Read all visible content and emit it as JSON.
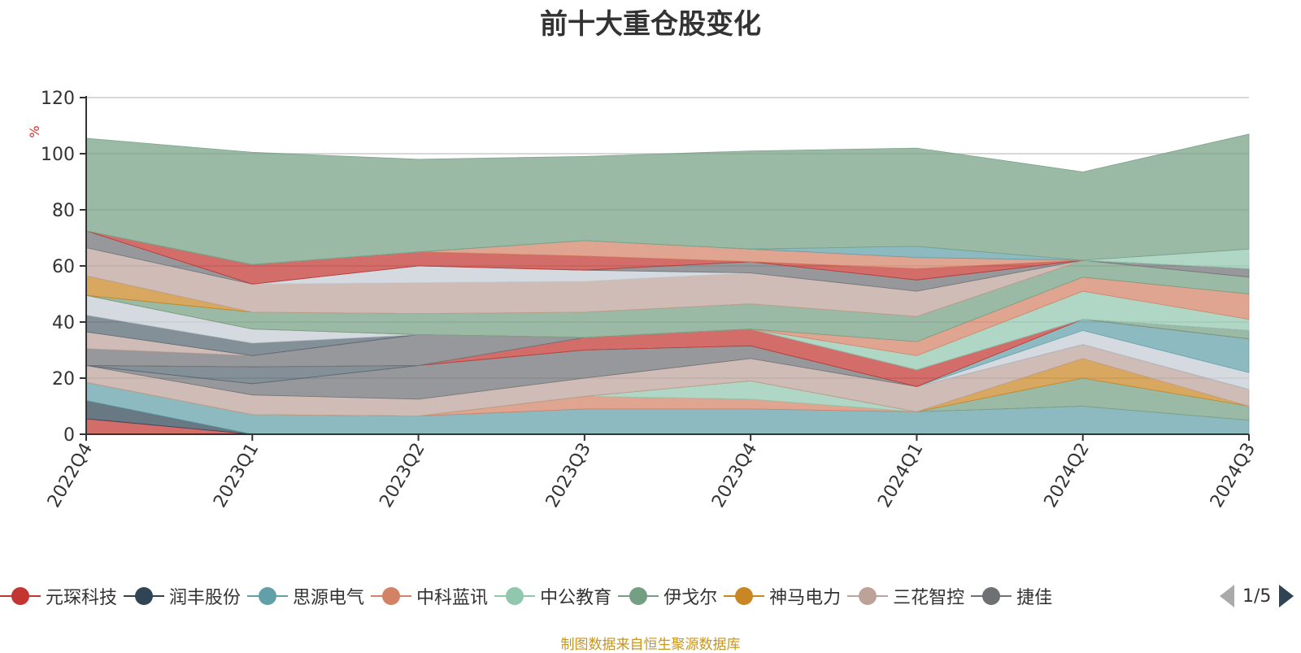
{
  "chart_data": {
    "type": "area",
    "title": "前十大重仓股变化",
    "ylabel": "%",
    "ylim": [
      0,
      120
    ],
    "yticks": [
      0,
      20,
      40,
      60,
      80,
      100,
      120
    ],
    "categories": [
      "2022Q4",
      "2023Q1",
      "2023Q2",
      "2023Q3",
      "2023Q4",
      "2024Q1",
      "2024Q2",
      "2024Q3"
    ],
    "legend_position": "bottom",
    "visible_legend": [
      "元琛科技",
      "润丰股份",
      "思源电气",
      "中科蓝讯",
      "中公教育",
      "伊戈尔",
      "神马电力",
      "三花智控",
      "捷佳"
    ],
    "series": [
      {
        "name": "元琛科技",
        "color": "#c23531",
        "values": [
          5.5,
          0,
          0,
          0,
          0,
          0,
          0,
          0
        ]
      },
      {
        "name": "润丰股份",
        "color": "#2f4554",
        "values": [
          6.5,
          0,
          0,
          0,
          0,
          0,
          0,
          0
        ]
      },
      {
        "name": "思源电气",
        "color": "#61a0a8",
        "values": [
          6.5,
          7,
          6.5,
          9,
          9,
          8,
          10,
          5
        ]
      },
      {
        "name": "中科蓝讯",
        "color": "#d48265",
        "values": [
          0,
          0,
          0,
          4.5,
          3.5,
          0,
          0,
          0
        ]
      },
      {
        "name": "中公教育",
        "color": "#91c7ae",
        "values": [
          0,
          0,
          0,
          0,
          6.5,
          0,
          0,
          0
        ]
      },
      {
        "name": "伊戈尔",
        "color": "#749f83",
        "values": [
          0,
          0,
          0,
          0,
          0,
          0,
          10,
          5
        ]
      },
      {
        "name": "神马电力",
        "color": "#ca8622",
        "values": [
          0,
          0,
          0,
          0,
          0,
          0,
          7,
          0
        ]
      },
      {
        "name": "三花智控",
        "color": "#bda29a",
        "values": [
          6,
          7,
          6,
          6.5,
          8,
          9,
          5,
          6
        ]
      },
      {
        "name": "捷佳",
        "color": "#6e7074",
        "values": [
          0,
          4,
          12,
          10,
          4.5,
          0,
          0,
          0
        ]
      },
      {
        "name": "",
        "color": "#546570",
        "values": [
          0,
          6,
          0,
          0,
          0,
          0,
          0,
          0
        ]
      },
      {
        "name": "",
        "color": "#c4ccd3",
        "values": [
          0,
          0,
          0,
          0,
          0,
          0,
          5,
          6
        ]
      },
      {
        "name": "",
        "color": "#61a0a8",
        "values": [
          0,
          0,
          0,
          0,
          0,
          0,
          4,
          12
        ]
      },
      {
        "name": "",
        "color": "#c23531",
        "values": [
          0,
          0,
          0,
          4.5,
          6,
          6,
          0,
          0
        ]
      },
      {
        "name": "",
        "color": "#749f83",
        "values": [
          0,
          0,
          0,
          0,
          0,
          0,
          0,
          3
        ]
      },
      {
        "name": "",
        "color": "#6e7074",
        "values": [
          6,
          4,
          11,
          0,
          0,
          0,
          0,
          0
        ]
      },
      {
        "name": "",
        "color": "#bda29a",
        "values": [
          6,
          0,
          0,
          0,
          0,
          0,
          0,
          0
        ]
      },
      {
        "name": "",
        "color": "#546570",
        "values": [
          6,
          4.5,
          0,
          0,
          0,
          0,
          0,
          0
        ]
      },
      {
        "name": "",
        "color": "#c4ccd3",
        "values": [
          7,
          5,
          0,
          0,
          0,
          0,
          0,
          0
        ]
      },
      {
        "name": "",
        "color": "#91c7ae",
        "values": [
          0,
          0,
          0,
          0,
          0,
          5,
          10,
          4
        ]
      },
      {
        "name": "",
        "color": "#d48265",
        "values": [
          0,
          0,
          0,
          0,
          0,
          5,
          5,
          9
        ]
      },
      {
        "name": "",
        "color": "#749f83",
        "values": [
          0,
          6,
          7.5,
          9,
          9,
          9,
          6,
          6
        ]
      },
      {
        "name": "",
        "color": "#ca8622",
        "values": [
          7,
          0,
          0,
          0,
          0,
          0,
          0,
          0
        ]
      },
      {
        "name": "",
        "color": "#bda29a",
        "values": [
          10,
          10,
          11,
          11,
          11,
          9,
          0,
          0
        ]
      },
      {
        "name": "",
        "color": "#c4ccd3",
        "values": [
          0,
          0,
          6,
          4,
          0,
          0,
          0,
          0
        ]
      },
      {
        "name": "",
        "color": "#6e7074",
        "values": [
          6,
          0,
          0,
          0,
          4,
          4,
          0,
          3
        ]
      },
      {
        "name": "",
        "color": "#c23531",
        "values": [
          0,
          7,
          5,
          5,
          0,
          4,
          0,
          0
        ]
      },
      {
        "name": "",
        "color": "#d48265",
        "values": [
          0,
          0,
          0,
          5.5,
          4.5,
          4,
          0,
          0
        ]
      },
      {
        "name": "",
        "color": "#61a0a8",
        "values": [
          0,
          0,
          0,
          0,
          0,
          4,
          0,
          0
        ]
      },
      {
        "name": "",
        "color": "#91c7ae",
        "values": [
          0,
          0,
          0,
          0,
          0,
          0,
          0,
          7
        ]
      },
      {
        "name": "",
        "color": "#749f83",
        "values": [
          33,
          40,
          33,
          30,
          35,
          35,
          31.5,
          41
        ]
      }
    ]
  },
  "legend": {
    "page": "1/5"
  },
  "source_note": "制图数据来自恒生聚源数据库"
}
